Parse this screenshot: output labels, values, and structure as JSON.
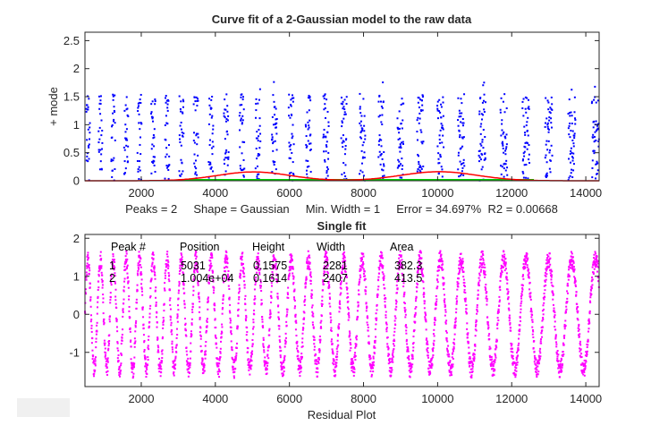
{
  "chart_data": [
    {
      "type": "scatter",
      "title": "Curve fit of a 2-Gaussian model to the raw data",
      "ylabel": "+ mode",
      "xlabel": "",
      "xlim": [
        480,
        14360
      ],
      "ylim": [
        0,
        2.65
      ],
      "xticks": [
        "2000",
        "4000",
        "6000",
        "8000",
        "10000",
        "12000",
        "14000"
      ],
      "yticks": [
        "0",
        "0.5",
        "1",
        "1.5",
        "2",
        "2.5"
      ],
      "grid": false,
      "colors": {
        "data": "#0000ff",
        "fit": "#ff0000",
        "baseline": "#00cc00"
      },
      "fit_peaks": [
        {
          "position": 5031,
          "height": 0.1575,
          "width": 2281
        },
        {
          "position": 10040,
          "height": 0.1614,
          "width": 2407
        }
      ],
      "annotation": "Peaks = 2     Shape = Gaussian     Min. Width = 1     Error = 34.697%  R2 = 0.00668"
    },
    {
      "type": "scatter",
      "title": "Single fit",
      "xlabel": "Residual Plot",
      "ylabel": "",
      "xlim": [
        480,
        14360
      ],
      "ylim": [
        -1.9,
        2.1
      ],
      "xticks": [
        "2000",
        "4000",
        "6000",
        "8000",
        "10000",
        "12000",
        "14000"
      ],
      "yticks": [
        "-1",
        "0",
        "1",
        "2"
      ],
      "grid": false,
      "colors": {
        "residual": "#ff00ff"
      },
      "table": {
        "headers": [
          "Peak #",
          "Position",
          "Height",
          "Width",
          "Area"
        ],
        "rows": [
          [
            "1",
            "5031",
            "0.1575",
            "2281",
            "382.3"
          ],
          [
            "2",
            "1.004e+04",
            "0.1614",
            "2407",
            "413.5"
          ]
        ]
      }
    }
  ],
  "button": {
    "label": ""
  }
}
